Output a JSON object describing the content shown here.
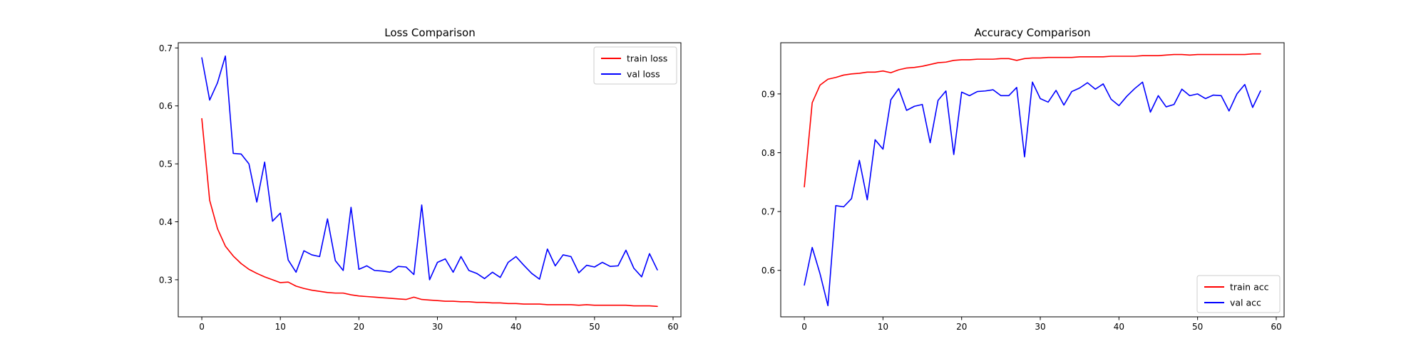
{
  "chart_data": [
    {
      "type": "line",
      "title": "Loss Comparison",
      "xlabel": "",
      "ylabel": "",
      "xlim": [
        -3,
        61
      ],
      "ylim": [
        0.236,
        0.709
      ],
      "xticks": [
        0,
        10,
        20,
        30,
        40,
        50,
        60
      ],
      "yticks": [
        0.3,
        0.4,
        0.5,
        0.6,
        0.7
      ],
      "legend": "top-right",
      "grid": false,
      "series": [
        {
          "name": "train loss",
          "color": "#ff0000",
          "x": [
            0,
            1,
            2,
            3,
            4,
            5,
            6,
            7,
            8,
            9,
            10,
            11,
            12,
            13,
            14,
            15,
            16,
            17,
            18,
            19,
            20,
            21,
            22,
            23,
            24,
            25,
            26,
            27,
            28,
            29,
            30,
            31,
            32,
            33,
            34,
            35,
            36,
            37,
            38,
            39,
            40,
            41,
            42,
            43,
            44,
            45,
            46,
            47,
            48,
            49,
            50,
            51,
            52,
            53,
            54,
            55,
            56,
            57,
            58
          ],
          "values": [
            0.578,
            0.437,
            0.388,
            0.358,
            0.341,
            0.328,
            0.318,
            0.311,
            0.305,
            0.3,
            0.295,
            0.296,
            0.289,
            0.285,
            0.282,
            0.28,
            0.278,
            0.277,
            0.277,
            0.274,
            0.272,
            0.271,
            0.27,
            0.269,
            0.268,
            0.267,
            0.266,
            0.27,
            0.266,
            0.265,
            0.264,
            0.263,
            0.263,
            0.262,
            0.262,
            0.261,
            0.261,
            0.26,
            0.26,
            0.259,
            0.259,
            0.258,
            0.258,
            0.258,
            0.257,
            0.257,
            0.257,
            0.257,
            0.256,
            0.257,
            0.256,
            0.256,
            0.256,
            0.256,
            0.256,
            0.255,
            0.255,
            0.255,
            0.254
          ]
        },
        {
          "name": "val loss",
          "color": "#0000ff",
          "x": [
            0,
            1,
            2,
            3,
            4,
            5,
            6,
            7,
            8,
            9,
            10,
            11,
            12,
            13,
            14,
            15,
            16,
            17,
            18,
            19,
            20,
            21,
            22,
            23,
            24,
            25,
            26,
            27,
            28,
            29,
            30,
            31,
            32,
            33,
            34,
            35,
            36,
            37,
            38,
            39,
            40,
            41,
            42,
            43,
            44,
            45,
            46,
            47,
            48,
            49,
            50,
            51,
            52,
            53,
            54,
            55,
            56,
            57,
            58
          ],
          "values": [
            0.683,
            0.61,
            0.64,
            0.686,
            0.518,
            0.517,
            0.5,
            0.434,
            0.503,
            0.401,
            0.415,
            0.334,
            0.313,
            0.35,
            0.343,
            0.34,
            0.405,
            0.333,
            0.316,
            0.425,
            0.318,
            0.324,
            0.316,
            0.315,
            0.313,
            0.323,
            0.322,
            0.309,
            0.429,
            0.3,
            0.33,
            0.336,
            0.313,
            0.34,
            0.316,
            0.311,
            0.302,
            0.313,
            0.304,
            0.33,
            0.34,
            0.325,
            0.311,
            0.301,
            0.353,
            0.324,
            0.343,
            0.34,
            0.312,
            0.325,
            0.322,
            0.33,
            0.323,
            0.324,
            0.351,
            0.32,
            0.305,
            0.345,
            0.317
          ]
        }
      ]
    },
    {
      "type": "line",
      "title": "Accuracy Comparison",
      "xlabel": "",
      "ylabel": "",
      "xlim": [
        -3,
        61
      ],
      "ylim": [
        0.521,
        0.987
      ],
      "xticks": [
        0,
        10,
        20,
        30,
        40,
        50,
        60
      ],
      "yticks": [
        0.6,
        0.7,
        0.8,
        0.9
      ],
      "legend": "bottom-right",
      "grid": false,
      "series": [
        {
          "name": "train acc",
          "color": "#ff0000",
          "x": [
            0,
            1,
            2,
            3,
            4,
            5,
            6,
            7,
            8,
            9,
            10,
            11,
            12,
            13,
            14,
            15,
            16,
            17,
            18,
            19,
            20,
            21,
            22,
            23,
            24,
            25,
            26,
            27,
            28,
            29,
            30,
            31,
            32,
            33,
            34,
            35,
            36,
            37,
            38,
            39,
            40,
            41,
            42,
            43,
            44,
            45,
            46,
            47,
            48,
            49,
            50,
            51,
            52,
            53,
            54,
            55,
            56,
            57,
            58
          ],
          "values": [
            0.742,
            0.885,
            0.915,
            0.925,
            0.928,
            0.932,
            0.934,
            0.935,
            0.937,
            0.937,
            0.939,
            0.936,
            0.941,
            0.944,
            0.945,
            0.947,
            0.95,
            0.953,
            0.954,
            0.957,
            0.958,
            0.958,
            0.959,
            0.959,
            0.959,
            0.96,
            0.96,
            0.957,
            0.96,
            0.961,
            0.961,
            0.962,
            0.962,
            0.962,
            0.962,
            0.963,
            0.963,
            0.963,
            0.963,
            0.964,
            0.964,
            0.964,
            0.964,
            0.965,
            0.965,
            0.965,
            0.966,
            0.967,
            0.967,
            0.966,
            0.967,
            0.967,
            0.967,
            0.967,
            0.967,
            0.967,
            0.967,
            0.968,
            0.968
          ]
        },
        {
          "name": "val acc",
          "color": "#0000ff",
          "x": [
            0,
            1,
            2,
            3,
            4,
            5,
            6,
            7,
            8,
            9,
            10,
            11,
            12,
            13,
            14,
            15,
            16,
            17,
            18,
            19,
            20,
            21,
            22,
            23,
            24,
            25,
            26,
            27,
            28,
            29,
            30,
            31,
            32,
            33,
            34,
            35,
            36,
            37,
            38,
            39,
            40,
            41,
            42,
            43,
            44,
            45,
            46,
            47,
            48,
            49,
            50,
            51,
            52,
            53,
            54,
            55,
            56,
            57,
            58
          ],
          "values": [
            0.575,
            0.639,
            0.594,
            0.54,
            0.71,
            0.708,
            0.722,
            0.787,
            0.72,
            0.822,
            0.806,
            0.89,
            0.909,
            0.872,
            0.879,
            0.882,
            0.817,
            0.889,
            0.905,
            0.797,
            0.903,
            0.897,
            0.904,
            0.905,
            0.907,
            0.897,
            0.897,
            0.911,
            0.793,
            0.92,
            0.892,
            0.886,
            0.906,
            0.881,
            0.904,
            0.91,
            0.919,
            0.908,
            0.917,
            0.891,
            0.88,
            0.896,
            0.909,
            0.92,
            0.869,
            0.897,
            0.878,
            0.882,
            0.908,
            0.897,
            0.9,
            0.892,
            0.898,
            0.897,
            0.871,
            0.9,
            0.916,
            0.877,
            0.905
          ]
        }
      ]
    }
  ]
}
